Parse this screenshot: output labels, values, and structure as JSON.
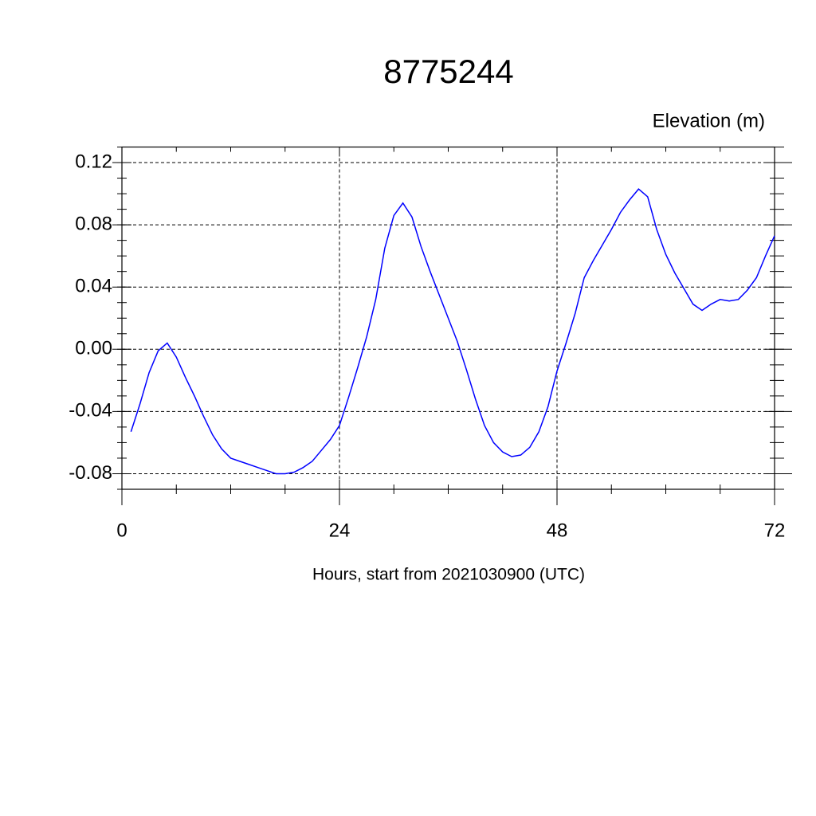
{
  "chart_data": {
    "type": "line",
    "title": "8775244",
    "ylabel": "Elevation (m)",
    "xlabel": "Hours, start from 2021030900 (UTC)",
    "x": [
      1,
      2,
      3,
      4,
      5,
      6,
      7,
      8,
      9,
      10,
      11,
      12,
      13,
      14,
      15,
      16,
      17,
      18,
      19,
      20,
      21,
      22,
      23,
      24,
      25,
      26,
      27,
      28,
      29,
      30,
      31,
      32,
      33,
      34,
      35,
      36,
      37,
      38,
      39,
      40,
      41,
      42,
      43,
      44,
      45,
      46,
      47,
      48,
      49,
      50,
      51,
      52,
      53,
      54,
      55,
      56,
      57,
      58,
      59,
      60,
      61,
      62,
      63,
      64,
      65,
      66,
      67,
      68,
      69,
      70,
      71,
      72
    ],
    "series": [
      {
        "name": "Elevation",
        "color": "#0000ff",
        "values": [
          -0.053,
          -0.035,
          -0.015,
          -0.001,
          0.004,
          -0.005,
          -0.018,
          -0.03,
          -0.043,
          -0.055,
          -0.064,
          -0.07,
          -0.072,
          -0.074,
          -0.076,
          -0.078,
          -0.08,
          -0.08,
          -0.079,
          -0.076,
          -0.072,
          -0.065,
          -0.058,
          -0.049,
          -0.031,
          -0.012,
          0.008,
          0.032,
          0.065,
          0.086,
          0.094,
          0.085,
          0.066,
          0.05,
          0.035,
          0.02,
          0.005,
          -0.013,
          -0.032,
          -0.049,
          -0.06,
          -0.066,
          -0.069,
          -0.068,
          -0.063,
          -0.053,
          -0.037,
          -0.014,
          0.004,
          0.023,
          0.046,
          0.057,
          0.067,
          0.077,
          0.088,
          0.096,
          0.103,
          0.098,
          0.077,
          0.061,
          0.049,
          0.039,
          0.029,
          0.025,
          0.029,
          0.032,
          0.031,
          0.032,
          0.038,
          0.046,
          0.06,
          0.073
        ]
      }
    ],
    "xlim": [
      0,
      72
    ],
    "xticks": [
      0,
      24,
      48,
      72
    ],
    "ylim": [
      -0.09,
      0.13
    ],
    "yticks": [
      0.12,
      0.08,
      0.04,
      {
        "value": 0,
        "label": "0.00"
      },
      -0.04,
      -0.08
    ],
    "grid": true
  }
}
